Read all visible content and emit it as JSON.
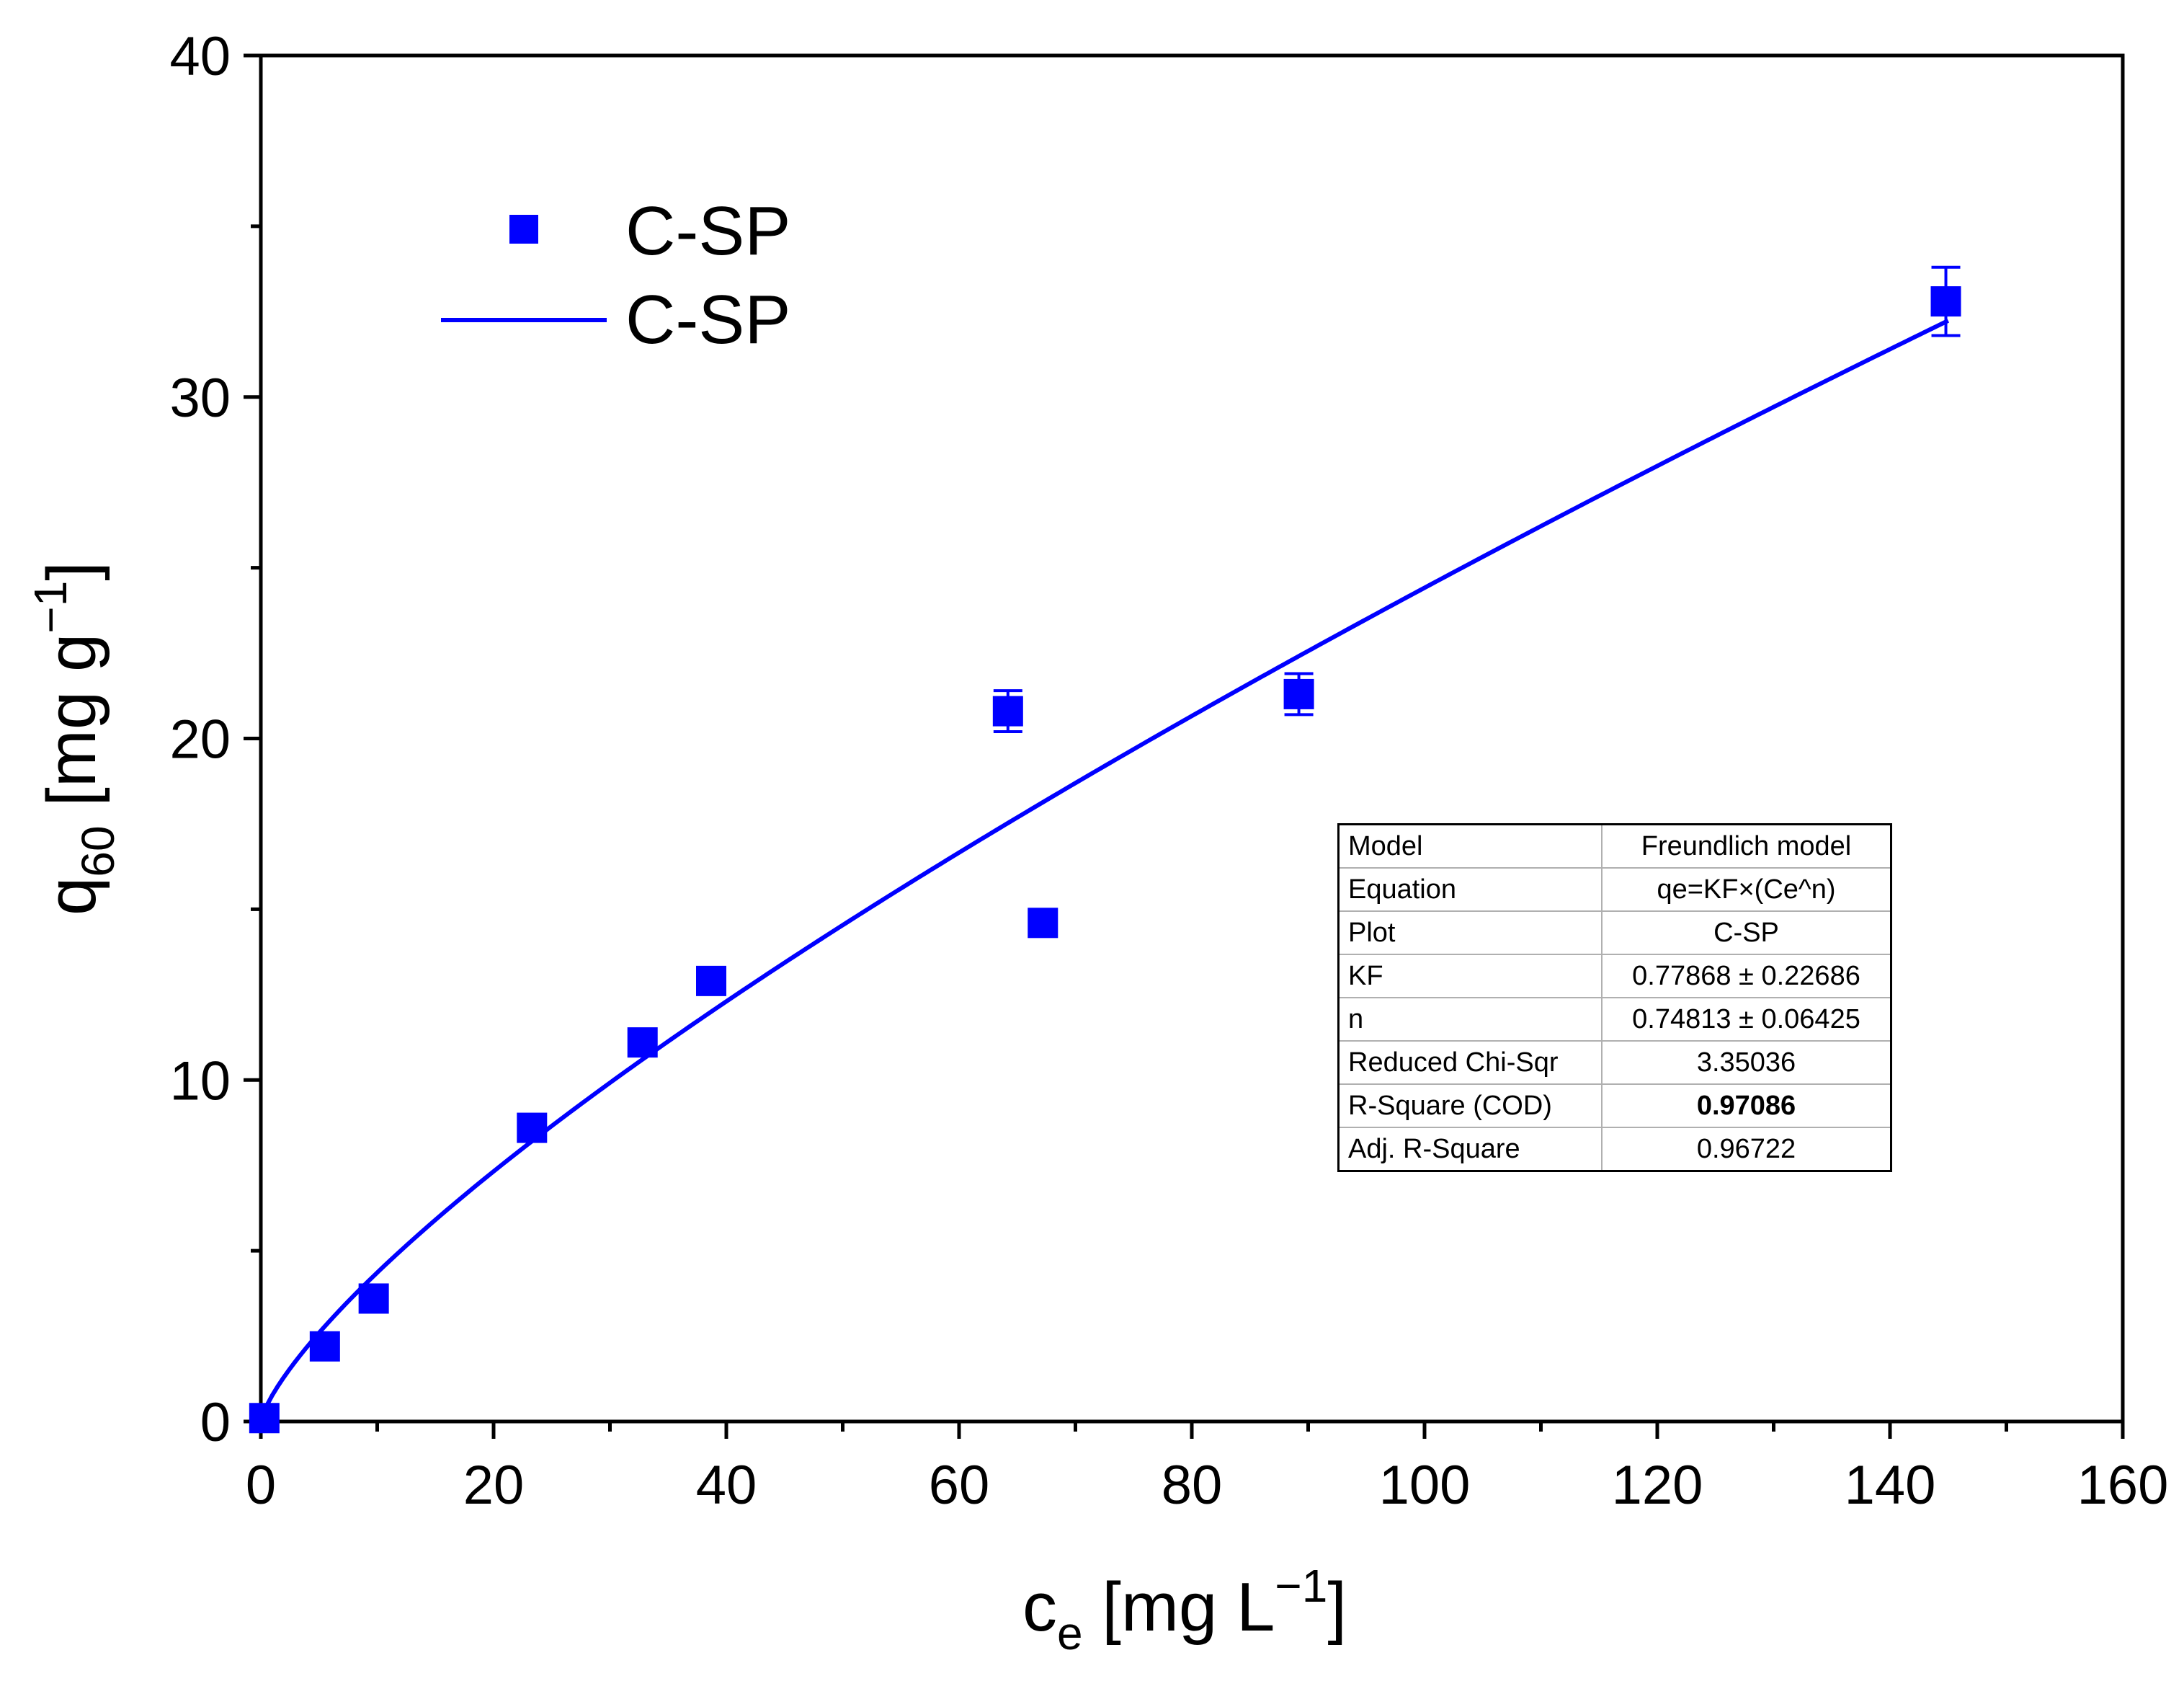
{
  "chart_data": {
    "type": "scatter",
    "x_label": {
      "main": "c",
      "sub": "e",
      "unit_pre": " [mg L",
      "sup": "−1",
      "unit_post": "]"
    },
    "y_label": {
      "main": "q",
      "sub": "60",
      "unit_pre": " [mg g",
      "sup": "−1",
      "unit_post": "]"
    },
    "xlim": [
      0,
      160
    ],
    "ylim": [
      0,
      40
    ],
    "x_ticks": [
      0,
      20,
      40,
      60,
      80,
      100,
      120,
      140,
      160
    ],
    "y_ticks": [
      0,
      10,
      20,
      30,
      40
    ],
    "x_minor_ticks": [
      10,
      30,
      50,
      70,
      90,
      110,
      130,
      150
    ],
    "y_minor_ticks": [
      5,
      15,
      25,
      35
    ],
    "series": [
      {
        "name": "C-SP",
        "kind": "scatter",
        "color": "#0000ff",
        "points": [
          {
            "x": 0.3,
            "y": 0.1,
            "err": 0
          },
          {
            "x": 5.5,
            "y": 2.2,
            "err": 0
          },
          {
            "x": 9.7,
            "y": 3.6,
            "err": 0
          },
          {
            "x": 23.3,
            "y": 8.6,
            "err": 0
          },
          {
            "x": 32.8,
            "y": 11.1,
            "err": 0
          },
          {
            "x": 38.7,
            "y": 12.9,
            "err": 0
          },
          {
            "x": 64.2,
            "y": 20.8,
            "err": 0.6
          },
          {
            "x": 67.2,
            "y": 14.6,
            "err": 0
          },
          {
            "x": 89.2,
            "y": 21.3,
            "err": 0.6
          },
          {
            "x": 144.8,
            "y": 32.8,
            "err": 1.0
          }
        ]
      },
      {
        "name": "C-SP",
        "kind": "line",
        "color": "#0000ff",
        "model": "freundlich",
        "KF": 0.77868,
        "n": 0.74813,
        "x_range": [
          0,
          145
        ]
      }
    ],
    "legend": {
      "position": "top-left",
      "entries": [
        "C-SP",
        "C-SP"
      ]
    },
    "stats_table": [
      {
        "param": "Model",
        "value": "Freundlich model",
        "bold": false
      },
      {
        "param": "Equation",
        "value": "qe=KF×(Ce^n)",
        "bold": false
      },
      {
        "param": "Plot",
        "value": "C-SP",
        "bold": false
      },
      {
        "param": "KF",
        "value": "0.77868 ± 0.22686",
        "bold": false
      },
      {
        "param": "n",
        "value": "0.74813 ± 0.06425",
        "bold": false
      },
      {
        "param": "Reduced Chi-Sqr",
        "value": "3.35036",
        "bold": false
      },
      {
        "param": "R-Square (COD)",
        "value": "0.97086",
        "bold": true
      },
      {
        "param": "Adj. R-Square",
        "value": "0.96722",
        "bold": false
      }
    ]
  }
}
